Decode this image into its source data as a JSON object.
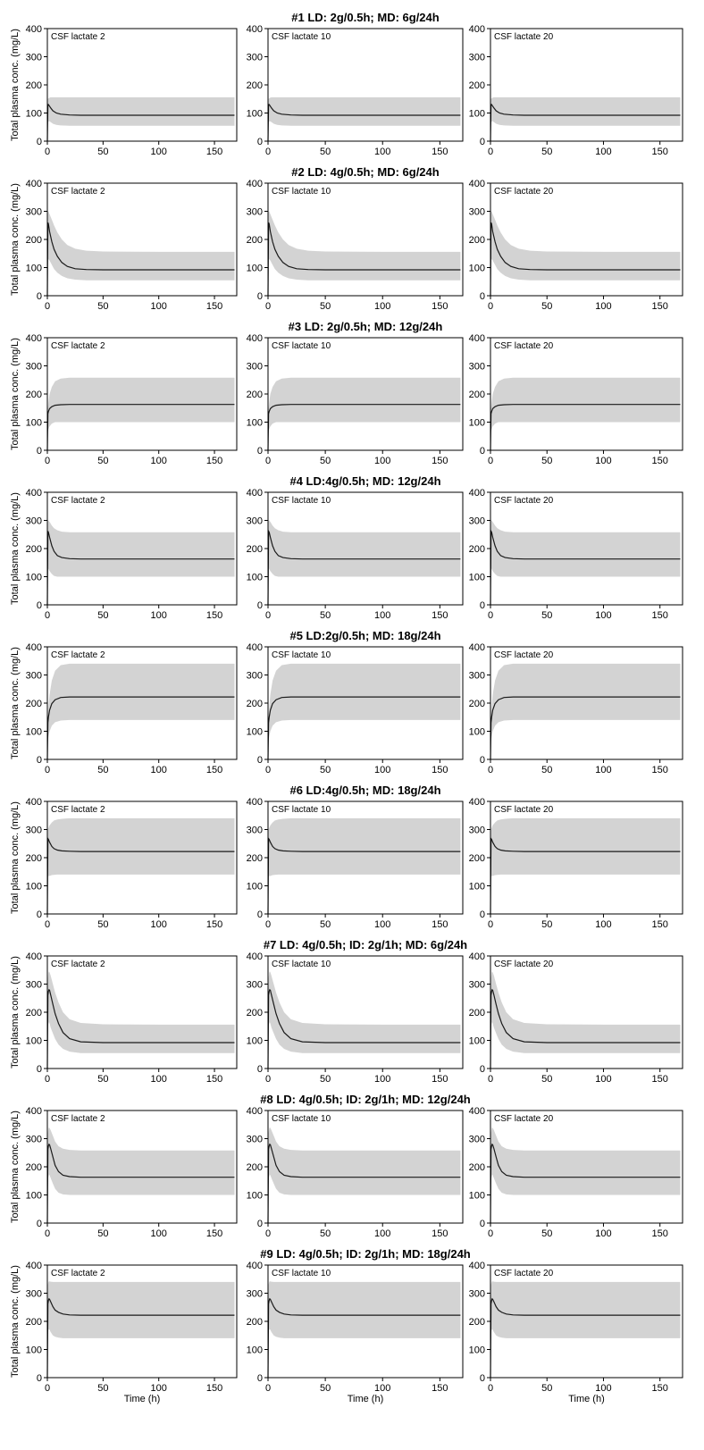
{
  "figure": {
    "ylabel": "Total plasma conc. (mg/L)",
    "xlabel": "Time (h)"
  },
  "colors": {
    "band": "#d3d3d3",
    "line": "#1a1a1a",
    "frame": "#000000"
  },
  "chart_data": {
    "type": "line",
    "panel_labels": [
      "CSF lactate 2",
      "CSF lactate 10",
      "CSF lactate 20"
    ],
    "x_ticks": [
      0,
      50,
      100,
      150
    ],
    "y_ticks": [
      0,
      100,
      200,
      300,
      400
    ],
    "xlim": [
      0,
      170
    ],
    "ylim": [
      0,
      400
    ],
    "note_band": "shaded gray area = variability band (lower/upper) around the median line",
    "regimens": [
      {
        "title": "#1 LD: 2g/0.5h; MD: 6g/24h",
        "series": [
          {
            "x": [
              0,
              0.5,
              1,
              2,
              3,
              5,
              8,
              12,
              20,
              30,
              50,
              100,
              168
            ],
            "y": [
              0,
              130,
              130,
              124,
              118,
              108,
              100,
              96,
              93,
              92,
              92,
              92,
              92
            ]
          },
          {
            "x": [
              0,
              0.5,
              1,
              2,
              3,
              5,
              8,
              12,
              20,
              30,
              50,
              100,
              168
            ],
            "y": [
              0,
              65,
              70,
              70,
              68,
              62,
              58,
              56,
              55,
              55,
              55,
              55,
              55
            ]
          },
          {
            "x": [
              0,
              0.5,
              1,
              2,
              3,
              5,
              8,
              12,
              20,
              30,
              50,
              100,
              168
            ],
            "y": [
              0,
              150,
              152,
              155,
              156,
              156,
              156,
              156,
              156,
              156,
              156,
              156,
              156
            ]
          }
        ]
      },
      {
        "title": "#2 LD: 4g/0.5h; MD: 6g/24h",
        "series": [
          {
            "x": [
              0,
              0.5,
              1,
              2,
              4,
              6,
              9,
              13,
              18,
              25,
              35,
              50,
              100,
              168
            ],
            "y": [
              0,
              260,
              255,
              228,
              192,
              165,
              140,
              118,
              104,
              96,
              93,
              92,
              92,
              92
            ]
          },
          {
            "x": [
              0,
              0.5,
              1,
              2,
              4,
              6,
              9,
              13,
              18,
              25,
              35,
              50,
              100,
              168
            ],
            "y": [
              0,
              130,
              130,
              125,
              110,
              95,
              82,
              70,
              62,
              57,
              55,
              55,
              55,
              55
            ]
          },
          {
            "x": [
              0,
              0.5,
              1,
              2,
              4,
              6,
              9,
              13,
              18,
              25,
              35,
              50,
              100,
              168
            ],
            "y": [
              0,
              300,
              300,
              290,
              270,
              250,
              225,
              200,
              180,
              167,
              160,
              157,
              156,
              156
            ]
          }
        ]
      },
      {
        "title": "#3 LD: 2g/0.5h; MD: 12g/24h",
        "series": [
          {
            "x": [
              0,
              0.5,
              1,
              2,
              4,
              7,
              12,
              20,
              30,
              50,
              100,
              168
            ],
            "y": [
              0,
              130,
              138,
              148,
              155,
              160,
              162,
              163,
              163,
              163,
              163,
              163
            ]
          },
          {
            "x": [
              0,
              0.5,
              1,
              2,
              4,
              7,
              12,
              20,
              30,
              50,
              100,
              168
            ],
            "y": [
              0,
              65,
              75,
              85,
              95,
              100,
              100,
              100,
              100,
              100,
              100,
              100
            ]
          },
          {
            "x": [
              0,
              0.5,
              1,
              2,
              4,
              7,
              12,
              20,
              30,
              50,
              100,
              168
            ],
            "y": [
              0,
              150,
              170,
              200,
              225,
              245,
              255,
              258,
              258,
              258,
              258,
              258
            ]
          }
        ]
      },
      {
        "title": "#4 LD:4g/0.5h; MD: 12g/24h",
        "series": [
          {
            "x": [
              0,
              0.5,
              1,
              2,
              4,
              6,
              9,
              13,
              20,
              30,
              50,
              100,
              168
            ],
            "y": [
              0,
              262,
              258,
              240,
              210,
              190,
              175,
              168,
              164,
              163,
              163,
              163,
              163
            ]
          },
          {
            "x": [
              0,
              0.5,
              1,
              2,
              4,
              6,
              9,
              13,
              20,
              30,
              50,
              100,
              168
            ],
            "y": [
              0,
              130,
              128,
              120,
              110,
              103,
              100,
              100,
              100,
              100,
              100,
              100,
              100
            ]
          },
          {
            "x": [
              0,
              0.5,
              1,
              2,
              4,
              6,
              9,
              13,
              20,
              30,
              50,
              100,
              168
            ],
            "y": [
              0,
              300,
              300,
              295,
              282,
              272,
              265,
              260,
              258,
              258,
              258,
              258,
              258
            ]
          }
        ]
      },
      {
        "title": "#5 LD:2g/0.5h; MD: 18g/24h",
        "series": [
          {
            "x": [
              0,
              0.5,
              1,
              2,
              4,
              7,
              12,
              20,
              30,
              50,
              100,
              168
            ],
            "y": [
              0,
              130,
              150,
              175,
              198,
              212,
              220,
              222,
              222,
              222,
              222,
              222
            ]
          },
          {
            "x": [
              0,
              0.5,
              1,
              2,
              4,
              7,
              12,
              20,
              30,
              50,
              100,
              168
            ],
            "y": [
              0,
              65,
              80,
              100,
              120,
              132,
              138,
              140,
              140,
              140,
              140,
              140
            ]
          },
          {
            "x": [
              0,
              0.5,
              1,
              2,
              4,
              7,
              12,
              20,
              30,
              50,
              100,
              168
            ],
            "y": [
              0,
              150,
              185,
              230,
              280,
              315,
              335,
              340,
              340,
              340,
              340,
              340
            ]
          }
        ]
      },
      {
        "title": "#6 LD:4g/0.5h; MD: 18g/24h",
        "series": [
          {
            "x": [
              0,
              0.5,
              1,
              2,
              4,
              6,
              9,
              13,
              20,
              30,
              50,
              100,
              168
            ],
            "y": [
              0,
              268,
              265,
              255,
              240,
              232,
              227,
              224,
              223,
              222,
              222,
              222,
              222
            ]
          },
          {
            "x": [
              0,
              0.5,
              1,
              2,
              4,
              6,
              9,
              13,
              20,
              30,
              50,
              100,
              168
            ],
            "y": [
              0,
              135,
              135,
              135,
              138,
              139,
              140,
              140,
              140,
              140,
              140,
              140,
              140
            ]
          },
          {
            "x": [
              0,
              0.5,
              1,
              2,
              4,
              6,
              9,
              13,
              20,
              30,
              50,
              100,
              168
            ],
            "y": [
              0,
              300,
              305,
              315,
              325,
              332,
              336,
              338,
              340,
              340,
              340,
              340,
              340
            ]
          }
        ]
      },
      {
        "title": "#7 LD: 4g/0.5h; ID: 2g/1h; MD: 6g/24h",
        "series": [
          {
            "x": [
              0,
              0.5,
              1,
              1.5,
              2,
              3,
              5,
              7,
              10,
              14,
              20,
              30,
              50,
              100,
              168
            ],
            "y": [
              0,
              260,
              275,
              280,
              278,
              262,
              228,
              195,
              160,
              128,
              106,
              95,
              92,
              92,
              92
            ]
          },
          {
            "x": [
              0,
              0.5,
              1,
              1.5,
              2,
              3,
              5,
              7,
              10,
              14,
              20,
              30,
              50,
              100,
              168
            ],
            "y": [
              0,
              150,
              160,
              165,
              160,
              145,
              125,
              105,
              85,
              70,
              60,
              55,
              55,
              55,
              55
            ]
          },
          {
            "x": [
              0,
              0.5,
              1,
              1.5,
              2,
              3,
              5,
              7,
              10,
              14,
              20,
              30,
              50,
              100,
              168
            ],
            "y": [
              0,
              320,
              340,
              345,
              342,
              330,
              300,
              270,
              235,
              200,
              175,
              162,
              157,
              156,
              156
            ]
          }
        ]
      },
      {
        "title": "#8 LD: 4g/0.5h; ID: 2g/1h; MD: 12g/24h",
        "series": [
          {
            "x": [
              0,
              0.5,
              1,
              1.5,
              2,
              3,
              5,
              7,
              10,
              14,
              20,
              30,
              50,
              100,
              168
            ],
            "y": [
              0,
              262,
              275,
              280,
              278,
              265,
              235,
              205,
              183,
              170,
              165,
              163,
              163,
              163,
              163
            ]
          },
          {
            "x": [
              0,
              0.5,
              1,
              1.5,
              2,
              3,
              5,
              7,
              10,
              14,
              20,
              30,
              50,
              100,
              168
            ],
            "y": [
              0,
              150,
              165,
              172,
              170,
              160,
              140,
              122,
              108,
              102,
              100,
              100,
              100,
              100,
              100
            ]
          },
          {
            "x": [
              0,
              0.5,
              1,
              1.5,
              2,
              3,
              5,
              7,
              10,
              14,
              20,
              30,
              50,
              100,
              168
            ],
            "y": [
              0,
              320,
              335,
              340,
              338,
              330,
              310,
              290,
              273,
              264,
              260,
              258,
              258,
              258,
              258
            ]
          }
        ]
      },
      {
        "title": "#9 LD: 4g/0.5h; ID: 2g/1h; MD: 18g/24h",
        "series": [
          {
            "x": [
              0,
              0.5,
              1,
              1.5,
              2,
              3,
              5,
              7,
              10,
              14,
              20,
              30,
              50,
              100,
              168
            ],
            "y": [
              0,
              262,
              275,
              280,
              278,
              270,
              252,
              240,
              232,
              226,
              223,
              222,
              222,
              222,
              222
            ]
          },
          {
            "x": [
              0,
              0.5,
              1,
              1.5,
              2,
              3,
              5,
              7,
              10,
              14,
              20,
              30,
              50,
              100,
              168
            ],
            "y": [
              0,
              160,
              170,
              172,
              170,
              162,
              150,
              145,
              142,
              140,
              140,
              140,
              140,
              140,
              140
            ]
          },
          {
            "x": [
              0,
              0.5,
              1,
              1.5,
              2,
              3,
              5,
              7,
              10,
              14,
              20,
              30,
              50,
              100,
              168
            ],
            "y": [
              0,
              330,
              340,
              342,
              342,
              341,
              340,
              340,
              340,
              340,
              340,
              340,
              340,
              340,
              340
            ]
          }
        ]
      }
    ]
  }
}
